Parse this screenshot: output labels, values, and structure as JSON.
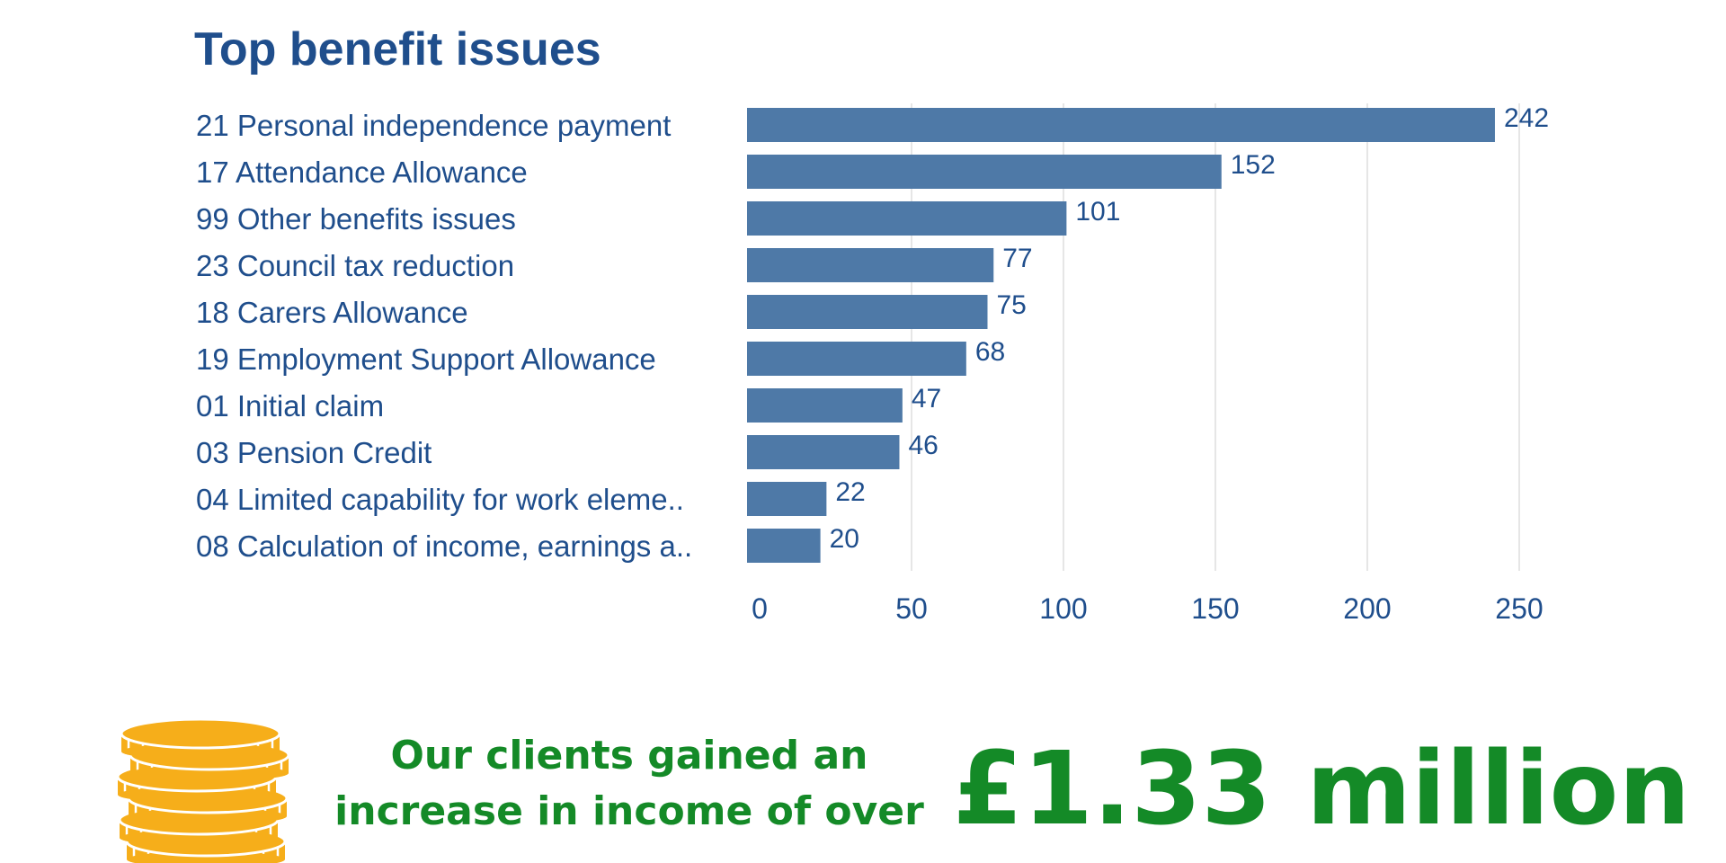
{
  "chart_data": {
    "type": "bar",
    "orientation": "horizontal",
    "title": "Top benefit issues",
    "categories": [
      "21 Personal independence payment",
      "17 Attendance Allowance",
      "99 Other benefits issues",
      "23 Council tax reduction",
      "18 Carers Allowance",
      "19 Employment Support Allowance",
      "01 Initial claim",
      "03 Pension Credit",
      "04 Limited capability for work eleme..",
      "08 Calculation of income, earnings a.."
    ],
    "values": [
      242,
      152,
      101,
      77,
      75,
      68,
      47,
      46,
      22,
      20
    ],
    "xlim": [
      0,
      250
    ],
    "xticks": [
      0,
      50,
      100,
      150,
      200,
      250
    ],
    "grid": true,
    "bar_color": "#4e79a7",
    "text_color": "#1f4e8c"
  },
  "promo": {
    "line1": "Our clients gained an",
    "line2": "increase in income of over",
    "amount": "£1.33 million",
    "icon": "coin-stack-icon",
    "color": "#148a27",
    "coin_color": "#f6ae1a"
  }
}
